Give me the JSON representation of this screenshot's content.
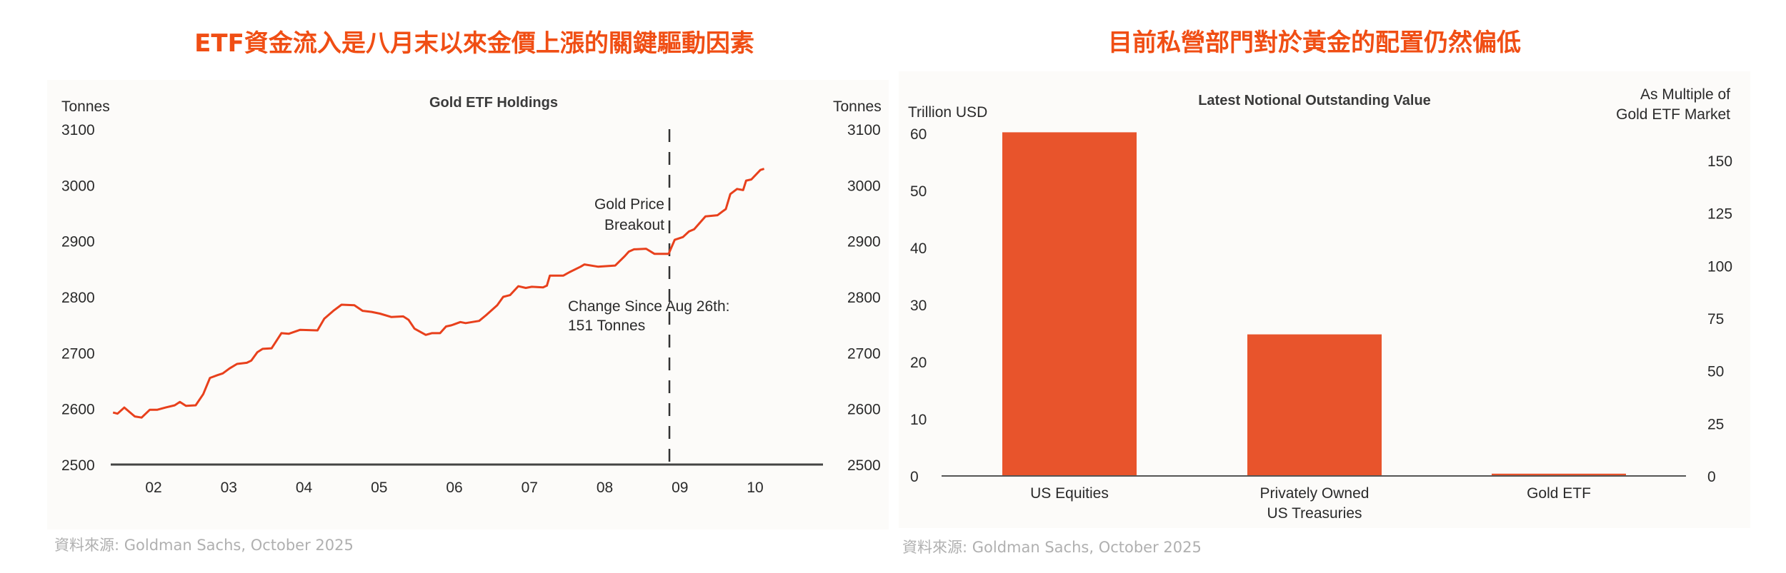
{
  "left": {
    "headline": "ETF資金流入是八月末以來金價上漲的關鍵驅動因素",
    "source": "資料來源: Goldman Sachs, October 2025"
  },
  "right": {
    "headline": "目前私營部門對於黃金的配置仍然偏低",
    "source": "資料來源: Goldman Sachs, October 2025"
  },
  "colors": {
    "accent": "#f04e14",
    "line": "#e8401c",
    "bar": "#e8542c",
    "panel": "#fcfbf9"
  },
  "chart_data": [
    {
      "type": "line",
      "title": "Gold ETF Holdings",
      "ylabel": "Tonnes",
      "ylabel_right": "Tonnes",
      "ylim": [
        2500,
        3100
      ],
      "yticks": [
        "2500",
        "2600",
        "2700",
        "2800",
        "2900",
        "3000",
        "3100"
      ],
      "xticks": [
        "02",
        "03",
        "04",
        "05",
        "06",
        "07",
        "08",
        "09",
        "10"
      ],
      "xlim": [
        1.43,
        10.9
      ],
      "series": [
        {
          "name": "Gold ETF Holdings (Tonnes)",
          "x": [
            1.46,
            1.52,
            1.61,
            1.68,
            1.75,
            1.84,
            1.95,
            2.05,
            2.16,
            2.28,
            2.35,
            2.43,
            2.56,
            2.66,
            2.75,
            2.85,
            2.92,
            3.01,
            3.11,
            3.24,
            3.3,
            3.38,
            3.45,
            3.57,
            3.7,
            3.8,
            3.95,
            4.18,
            4.27,
            4.4,
            4.5,
            4.67,
            4.78,
            4.9,
            5.01,
            5.16,
            5.32,
            5.39,
            5.47,
            5.62,
            5.7,
            5.81,
            5.89,
            5.96,
            6.08,
            6.15,
            6.33,
            6.42,
            6.57,
            6.65,
            6.74,
            6.85,
            6.95,
            7.03,
            7.18,
            7.23,
            7.27,
            7.45,
            7.53,
            7.68,
            7.73,
            7.91,
            8.14,
            8.26,
            8.32,
            8.39,
            8.55,
            8.66,
            8.85,
            8.93,
            9.04,
            9.12,
            9.19,
            9.34,
            9.5,
            9.57,
            9.61,
            9.67,
            9.76,
            9.84,
            9.88,
            9.95,
            10.07,
            10.12
          ],
          "y": [
            2593,
            2591,
            2602,
            2594,
            2586,
            2584,
            2598,
            2598,
            2602,
            2606,
            2612,
            2605,
            2606,
            2626,
            2655,
            2660,
            2663,
            2672,
            2680,
            2682,
            2686,
            2701,
            2707,
            2708,
            2735,
            2734,
            2741,
            2740,
            2761,
            2776,
            2786,
            2785,
            2775,
            2773,
            2770,
            2764,
            2765,
            2759,
            2743,
            2732,
            2735,
            2735,
            2747,
            2749,
            2755,
            2753,
            2757,
            2767,
            2785,
            2800,
            2803,
            2819,
            2816,
            2818,
            2817,
            2820,
            2838,
            2838,
            2844,
            2854,
            2858,
            2854,
            2856,
            2872,
            2881,
            2885,
            2886,
            2877,
            2877,
            2902,
            2907,
            2917,
            2921,
            2944,
            2946,
            2953,
            2957,
            2984,
            2993,
            2991,
            3008,
            3010,
            3027,
            3029
          ]
        }
      ],
      "vline": {
        "x": 8.86,
        "style": "dashed"
      },
      "annotations": [
        {
          "lines": [
            "Gold Price",
            "Breakout"
          ]
        },
        {
          "lines": [
            "Change Since Aug 26th:",
            "151 Tonnes"
          ]
        }
      ]
    },
    {
      "type": "bar",
      "title": "Latest Notional Outstanding Value",
      "ylabel": "Trillion USD",
      "ylabel_right": [
        "As Multiple of",
        "Gold ETF Market"
      ],
      "ylim": [
        0,
        60
      ],
      "yticks": [
        "0",
        "10",
        "20",
        "30",
        "40",
        "50",
        "60"
      ],
      "yticks_right": [
        "0",
        "25",
        "50",
        "75",
        "100",
        "125",
        "150"
      ],
      "categories": [
        [
          "US Equities"
        ],
        [
          "Privately Owned",
          "US Treasuries"
        ],
        [
          "Gold ETF"
        ]
      ],
      "values": [
        60.2,
        24.8,
        0.4
      ]
    }
  ]
}
